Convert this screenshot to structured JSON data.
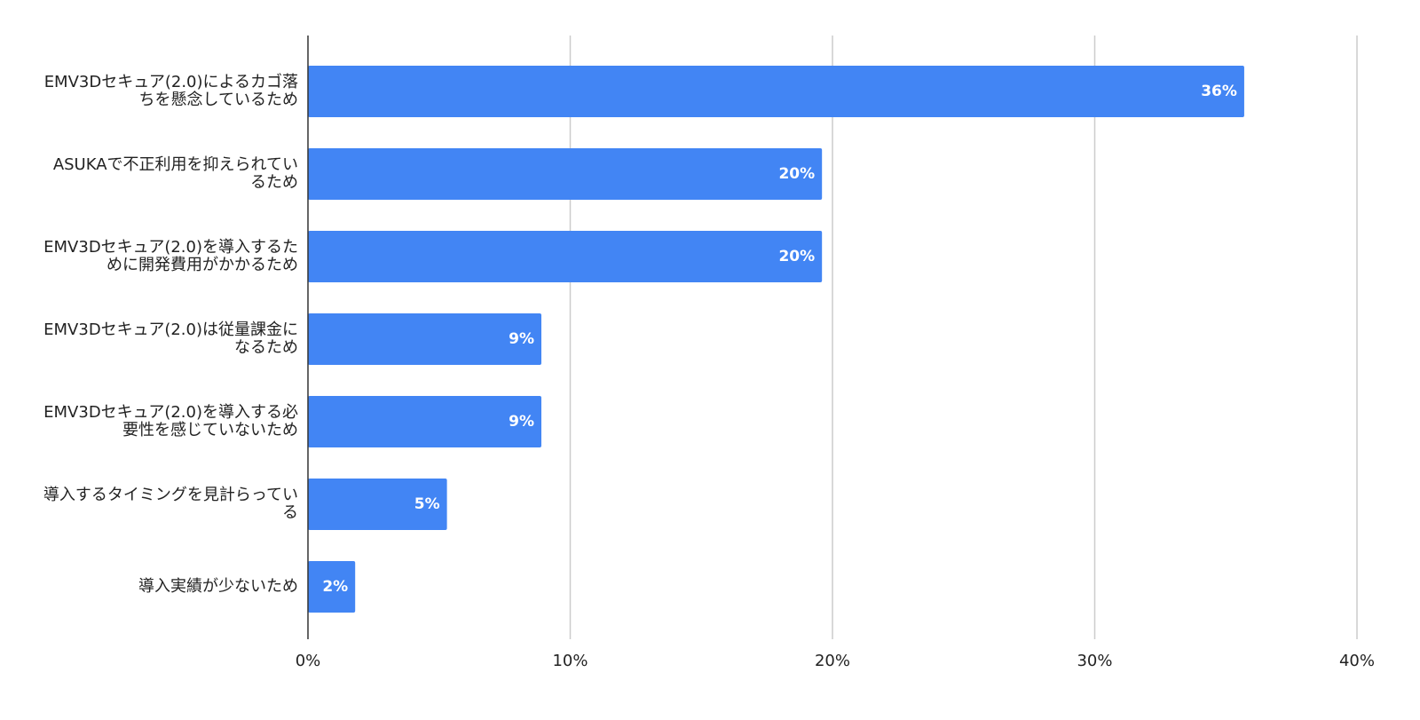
{
  "chart_data": {
    "type": "barh",
    "categories": [
      "EMV3Dセキュア(2.0)によるカゴ落ちを懸念しているため",
      "ASUKAで不正利用を抑えられているため",
      "EMV3Dセキュア(2.0)を導入するために開発費用がかかるため",
      "EMV3Dセキュア(2.0)は従量課金になるため",
      "EMV3Dセキュア(2.0)を導入する必要性を感じていないため",
      "導入するタイミングを見計らっている",
      "導入実績が少ないため"
    ],
    "values": [
      35.7,
      19.6,
      19.6,
      8.9,
      8.9,
      5.3,
      1.8
    ],
    "value_labels": [
      "36%",
      "20%",
      "20%",
      "9%",
      "9%",
      "5%",
      "2%"
    ],
    "color": "#4285f4",
    "xlim": [
      0,
      40
    ],
    "xticks": [
      {
        "value": 0,
        "label": "0%"
      },
      {
        "value": 10,
        "label": "10%"
      },
      {
        "value": 20,
        "label": "20%"
      },
      {
        "value": 30,
        "label": "30%"
      },
      {
        "value": 40,
        "label": "40%"
      }
    ],
    "grid": true
  }
}
